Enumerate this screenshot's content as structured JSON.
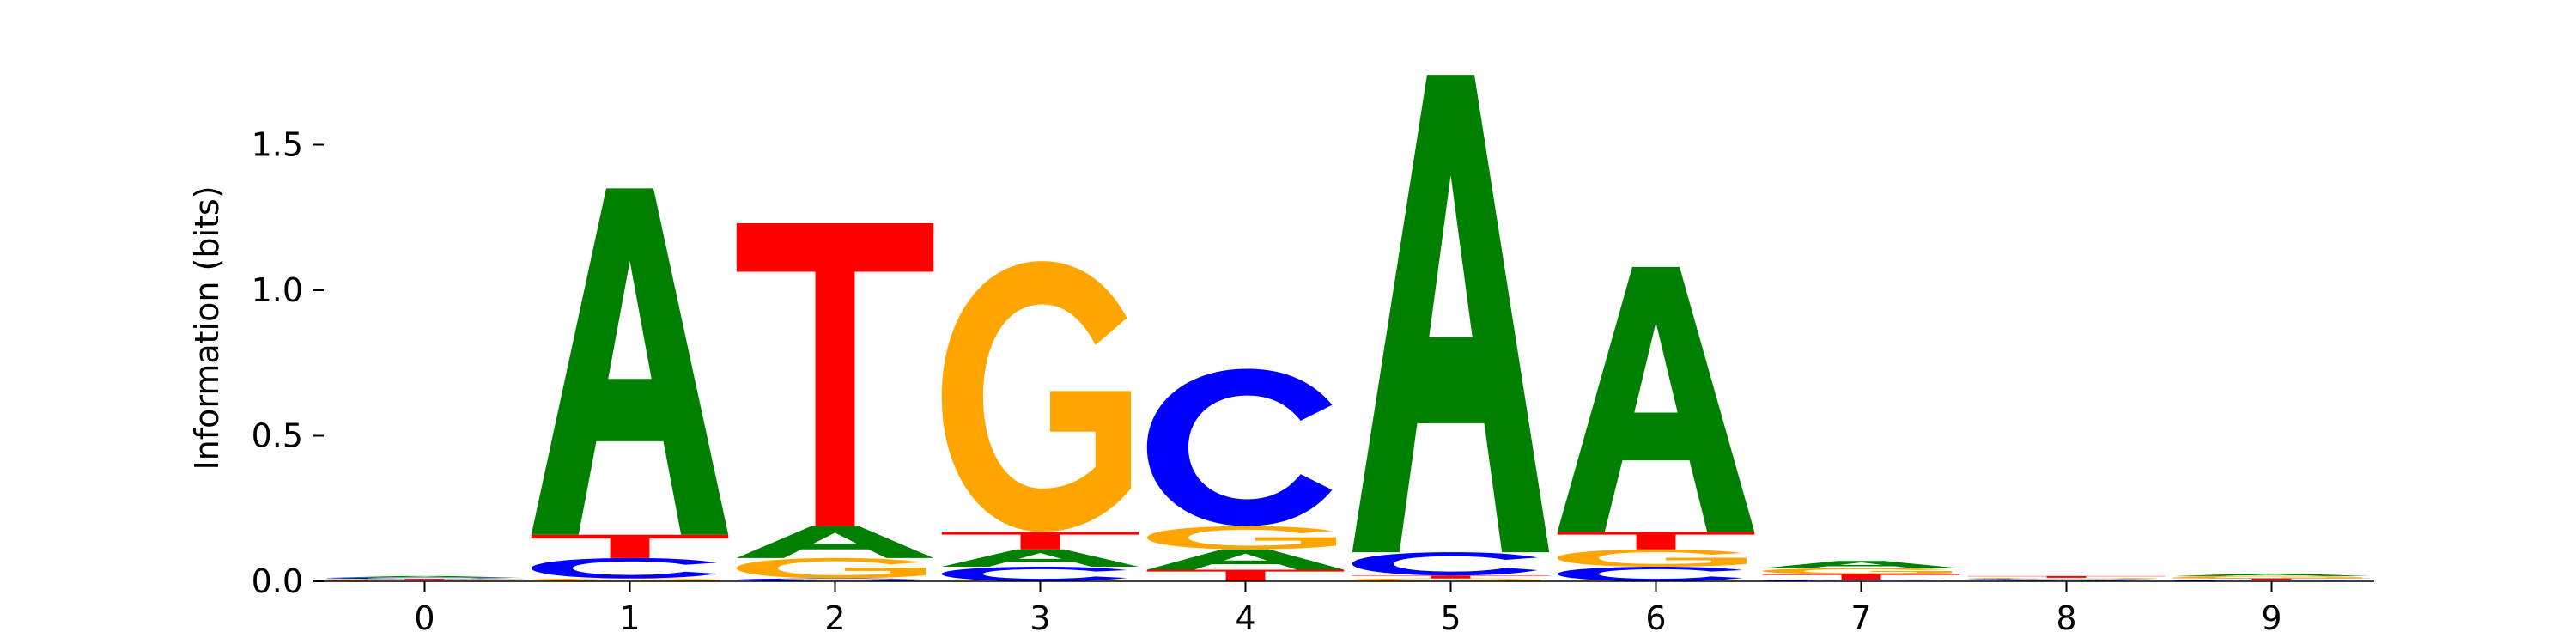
{
  "chart_data": {
    "type": "sequence-logo",
    "title": "",
    "xlabel": "",
    "ylabel": "Information (bits)",
    "ylim": [
      0,
      1.8
    ],
    "yticks": [
      {
        "value": 0.0,
        "label": "0.0"
      },
      {
        "value": 0.5,
        "label": "0.5"
      },
      {
        "value": 1.0,
        "label": "1.0"
      },
      {
        "value": 1.5,
        "label": "1.5"
      }
    ],
    "positions": [
      {
        "label": "0",
        "stack": [
          {
            "base": "G",
            "height": 0.004
          },
          {
            "base": "T",
            "height": 0.004
          },
          {
            "base": "C",
            "height": 0.004
          },
          {
            "base": "A",
            "height": 0.006
          }
        ]
      },
      {
        "label": "1",
        "stack": [
          {
            "base": "G",
            "height": 0.01
          },
          {
            "base": "C",
            "height": 0.07
          },
          {
            "base": "T",
            "height": 0.08
          },
          {
            "base": "A",
            "height": 1.19
          }
        ]
      },
      {
        "label": "2",
        "stack": [
          {
            "base": "C",
            "height": 0.01
          },
          {
            "base": "G",
            "height": 0.07
          },
          {
            "base": "A",
            "height": 0.11
          },
          {
            "base": "T",
            "height": 1.04
          }
        ]
      },
      {
        "label": "3",
        "stack": [
          {
            "base": "C",
            "height": 0.05
          },
          {
            "base": "A",
            "height": 0.06
          },
          {
            "base": "T",
            "height": 0.06
          },
          {
            "base": "G",
            "height": 0.93
          }
        ]
      },
      {
        "label": "4",
        "stack": [
          {
            "base": "T",
            "height": 0.04
          },
          {
            "base": "A",
            "height": 0.07
          },
          {
            "base": "G",
            "height": 0.08
          },
          {
            "base": "C",
            "height": 0.54
          }
        ]
      },
      {
        "label": "5",
        "stack": [
          {
            "base": "G",
            "height": 0.01
          },
          {
            "base": "T",
            "height": 0.01
          },
          {
            "base": "C",
            "height": 0.08
          },
          {
            "base": "A",
            "height": 1.64
          }
        ]
      },
      {
        "label": "6",
        "stack": [
          {
            "base": "C",
            "height": 0.05
          },
          {
            "base": "G",
            "height": 0.06
          },
          {
            "base": "T",
            "height": 0.06
          },
          {
            "base": "A",
            "height": 0.91
          }
        ]
      },
      {
        "label": "7",
        "stack": [
          {
            "base": "C",
            "height": 0.005
          },
          {
            "base": "T",
            "height": 0.02
          },
          {
            "base": "G",
            "height": 0.02
          },
          {
            "base": "A",
            "height": 0.025
          }
        ]
      },
      {
        "label": "8",
        "stack": [
          {
            "base": "A",
            "height": 0.004
          },
          {
            "base": "C",
            "height": 0.004
          },
          {
            "base": "G",
            "height": 0.004
          },
          {
            "base": "T",
            "height": 0.006
          }
        ]
      },
      {
        "label": "9",
        "stack": [
          {
            "base": "C",
            "height": 0.004
          },
          {
            "base": "T",
            "height": 0.006
          },
          {
            "base": "G",
            "height": 0.008
          },
          {
            "base": "A",
            "height": 0.008
          }
        ]
      }
    ],
    "colors": {
      "A": "#008000",
      "C": "#0000ff",
      "G": "#ffa500",
      "T": "#ff0000"
    },
    "grid": false,
    "legend": "none"
  }
}
